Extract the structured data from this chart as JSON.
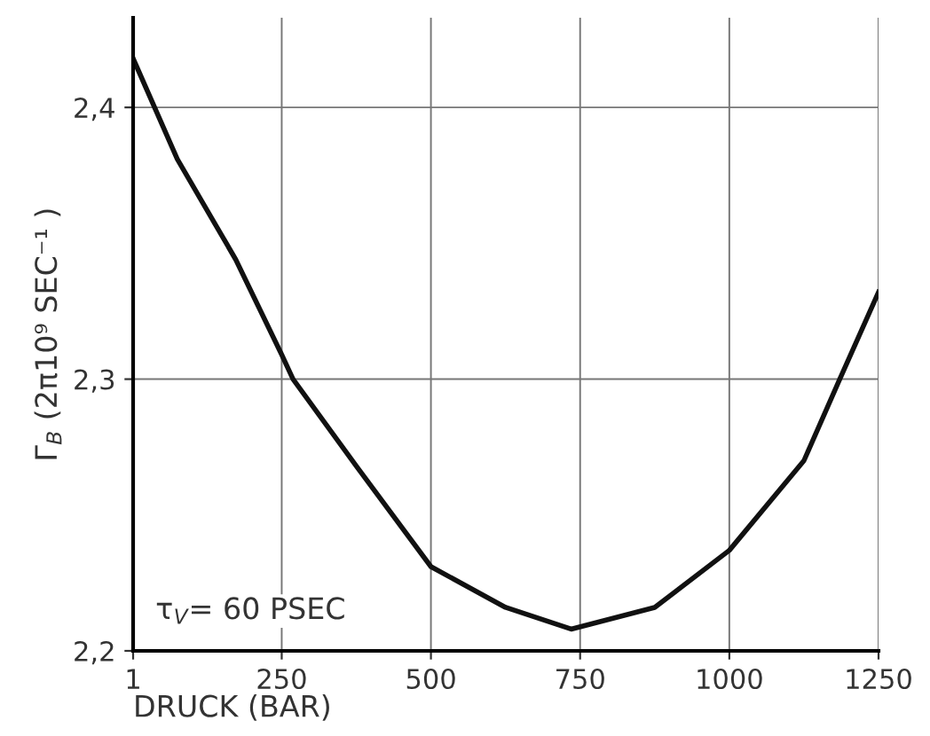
{
  "chart_data": {
    "type": "line",
    "xlabel": "DRUCK (BAR)",
    "ylabel": "Γ$_{B}$ (2π10⁹ SEC⁻¹ )",
    "annotations": [
      "τ$_{V}$= 60 PSEC"
    ],
    "series": [
      {
        "color": "#111111",
        "x": [
          1,
          75,
          173,
          250,
          269,
          375,
          500,
          625,
          735,
          875,
          1000,
          1125,
          1185,
          1250
        ],
        "values": [
          2.418,
          2.381,
          2.344,
          2.309,
          2.3,
          2.268,
          2.231,
          2.216,
          2.208,
          2.216,
          2.237,
          2.27,
          2.3,
          2.332
        ]
      }
    ],
    "xlim": [
      1,
      1250
    ],
    "xticks": [
      1,
      250,
      500,
      750,
      1000,
      1250
    ],
    "ylim": [
      2.2,
      2.433
    ],
    "yticks": [
      {
        "value": 2.2,
        "label": "2,2"
      },
      {
        "value": 2.3,
        "label": "2,3"
      },
      {
        "value": 2.4,
        "label": "2,4"
      }
    ],
    "grid": true,
    "marker": "none",
    "line_style": "solid"
  }
}
